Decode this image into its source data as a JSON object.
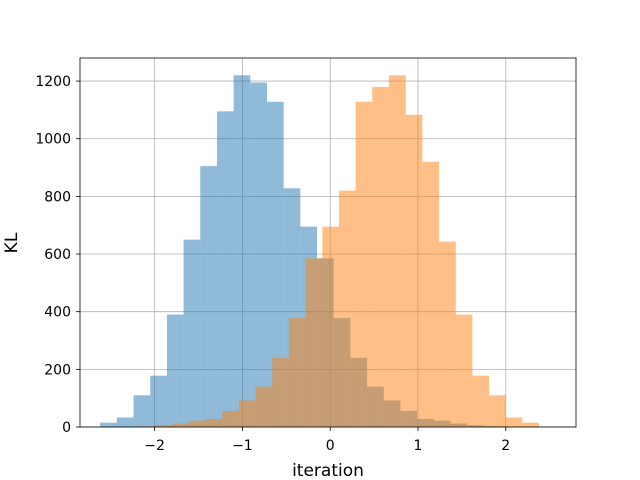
{
  "chart_data": {
    "type": "histogram",
    "title": "",
    "xlabel": "iteration",
    "ylabel": "KL",
    "xlim": [
      -2.85,
      2.8
    ],
    "ylim": [
      0,
      1280
    ],
    "xticks": [
      -2,
      -1,
      0,
      1,
      2
    ],
    "xtick_labels": [
      "−2",
      "−1",
      "0",
      "1",
      "2"
    ],
    "yticks": [
      0,
      200,
      400,
      600,
      800,
      1000,
      1200
    ],
    "ytick_labels": [
      "0",
      "200",
      "400",
      "600",
      "800",
      "1000",
      "1200"
    ],
    "grid": true,
    "legend": null,
    "series": [
      {
        "color": "#1f77b4",
        "alpha": 0.5,
        "bin_edges": [
          -2.62,
          -2.43,
          -2.24,
          -2.05,
          -1.86,
          -1.67,
          -1.48,
          -1.29,
          -1.1,
          -0.91,
          -0.72,
          -0.53,
          -0.34,
          -0.15,
          0.04,
          0.23,
          0.42,
          0.61,
          0.8,
          0.99,
          1.18,
          1.37,
          1.56,
          1.75,
          1.94,
          2.13,
          2.32,
          2.51
        ],
        "counts": [
          15,
          33,
          110,
          178,
          390,
          650,
          905,
          1095,
          1220,
          1195,
          1128,
          828,
          695,
          585,
          378,
          240,
          140,
          92,
          56,
          28,
          22,
          12,
          6,
          3,
          2,
          1,
          0
        ]
      },
      {
        "color": "#ff7f0e",
        "alpha": 0.5,
        "bin_edges": [
          -2.56,
          -2.37,
          -2.18,
          -1.99,
          -1.8,
          -1.61,
          -1.42,
          -1.23,
          -1.04,
          -0.85,
          -0.66,
          -0.47,
          -0.28,
          -0.09,
          0.1,
          0.29,
          0.48,
          0.67,
          0.86,
          1.05,
          1.24,
          1.43,
          1.62,
          1.81,
          2.0,
          2.19,
          2.38,
          2.57
        ],
        "counts": [
          0,
          1,
          2,
          6,
          12,
          22,
          28,
          56,
          92,
          140,
          240,
          378,
          585,
          695,
          820,
          1128,
          1180,
          1220,
          1083,
          920,
          643,
          390,
          178,
          110,
          33,
          15,
          0
        ]
      }
    ]
  }
}
